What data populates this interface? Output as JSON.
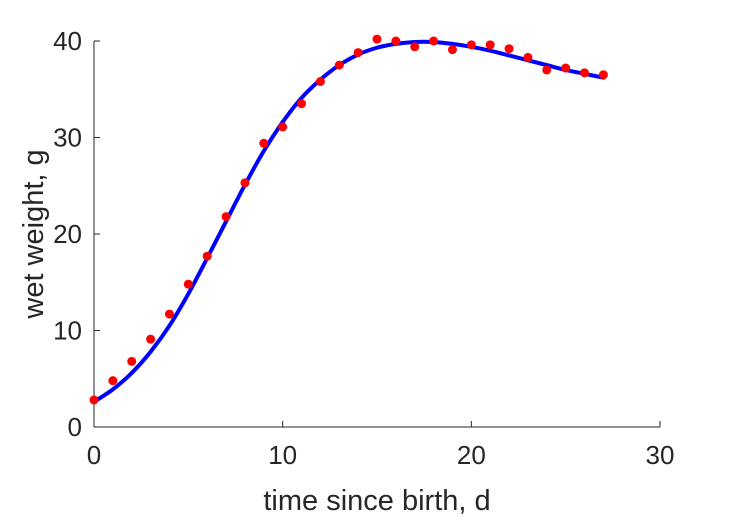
{
  "chart_data": {
    "type": "scatter",
    "xlabel": "time since birth, d",
    "ylabel": "wet weight, g",
    "xlim": [
      0,
      30
    ],
    "ylim": [
      0,
      40
    ],
    "xticks": [
      0,
      10,
      20,
      30
    ],
    "yticks": [
      0,
      10,
      20,
      30,
      40
    ],
    "grid": false,
    "series": [
      {
        "kind": "points",
        "color": "#ff0000",
        "points": [
          [
            0,
            2.8
          ],
          [
            1,
            4.8
          ],
          [
            2,
            6.8
          ],
          [
            3,
            9.1
          ],
          [
            4,
            11.7
          ],
          [
            5,
            14.8
          ],
          [
            6,
            17.7
          ],
          [
            7,
            21.8
          ],
          [
            8,
            25.3
          ],
          [
            9,
            29.4
          ],
          [
            10,
            31.1
          ],
          [
            11,
            33.5
          ],
          [
            12,
            35.8
          ],
          [
            13,
            37.5
          ],
          [
            14,
            38.8
          ],
          [
            15,
            40.2
          ],
          [
            16,
            40.0
          ],
          [
            17,
            39.4
          ],
          [
            18,
            40.0
          ],
          [
            19,
            39.1
          ],
          [
            20,
            39.6
          ],
          [
            21,
            39.6
          ],
          [
            22,
            39.2
          ],
          [
            23,
            38.3
          ],
          [
            24,
            37.0
          ],
          [
            25,
            37.2
          ],
          [
            26,
            36.7
          ],
          [
            27,
            36.5
          ]
        ]
      },
      {
        "kind": "curve",
        "color": "#0000ff",
        "points": [
          [
            0,
            2.6
          ],
          [
            1,
            3.9
          ],
          [
            2,
            5.6
          ],
          [
            3,
            7.8
          ],
          [
            4,
            10.5
          ],
          [
            5,
            13.8
          ],
          [
            6,
            17.5
          ],
          [
            7,
            21.3
          ],
          [
            8,
            25.1
          ],
          [
            9,
            28.6
          ],
          [
            10,
            31.6
          ],
          [
            11,
            34.1
          ],
          [
            12,
            36.0
          ],
          [
            13,
            37.5
          ],
          [
            14,
            38.6
          ],
          [
            15,
            39.3
          ],
          [
            16,
            39.7
          ],
          [
            17,
            39.9
          ],
          [
            18,
            39.9
          ],
          [
            19,
            39.7
          ],
          [
            20,
            39.4
          ],
          [
            21,
            39.0
          ],
          [
            22,
            38.5
          ],
          [
            23,
            38.0
          ],
          [
            24,
            37.5
          ],
          [
            25,
            37.0
          ],
          [
            26,
            36.6
          ],
          [
            27,
            36.2
          ]
        ]
      }
    ]
  }
}
